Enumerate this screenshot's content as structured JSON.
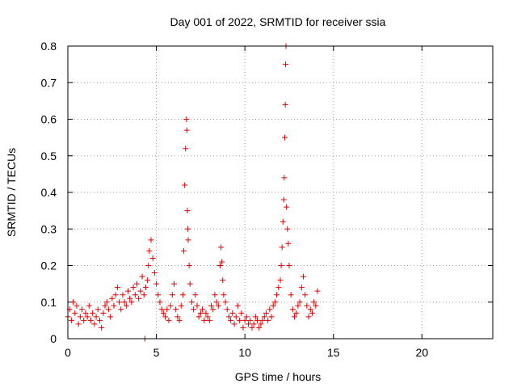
{
  "chart_data": {
    "type": "scatter",
    "title": "Day 001 of 2022, SRMTID for receiver ssia",
    "xlabel": "GPS time / hours",
    "ylabel": "SRMTID / TECUs",
    "xlim": [
      0,
      24
    ],
    "ylim": [
      0,
      0.8
    ],
    "x_ticks": [
      0,
      5,
      10,
      15,
      20
    ],
    "y_ticks": [
      0,
      0.1,
      0.2,
      0.3,
      0.4,
      0.5,
      0.6,
      0.7,
      0.8
    ],
    "x_tick_labels": [
      "0",
      "5",
      "10",
      "15",
      "20"
    ],
    "y_tick_labels": [
      "0",
      "0.1",
      "0.2",
      "0.3",
      "0.4",
      "0.5",
      "0.6",
      "0.7",
      "0.8"
    ],
    "grid": true,
    "marker": "+",
    "color": "#e00000",
    "series": [
      {
        "name": "SRMTID",
        "x": [
          0.0,
          0.1,
          0.2,
          0.3,
          0.4,
          0.5,
          0.6,
          0.7,
          0.8,
          0.9,
          1.0,
          1.1,
          1.2,
          1.3,
          1.4,
          1.5,
          1.6,
          1.7,
          1.8,
          1.9,
          2.0,
          2.1,
          2.2,
          2.3,
          2.4,
          2.5,
          2.6,
          2.7,
          2.8,
          2.9,
          3.0,
          3.1,
          3.2,
          3.3,
          3.4,
          3.5,
          3.6,
          3.7,
          3.8,
          3.9,
          4.0,
          4.1,
          4.2,
          4.3,
          4.35,
          4.4,
          4.5,
          4.55,
          4.6,
          4.7,
          4.8,
          4.9,
          5.0,
          5.1,
          5.2,
          5.3,
          5.4,
          5.5,
          5.6,
          5.7,
          5.8,
          5.9,
          6.0,
          6.1,
          6.2,
          6.3,
          6.4,
          6.5,
          6.55,
          6.6,
          6.65,
          6.7,
          6.72,
          6.75,
          6.78,
          6.8,
          6.85,
          6.9,
          7.0,
          7.1,
          7.2,
          7.3,
          7.4,
          7.5,
          7.6,
          7.7,
          7.8,
          7.9,
          8.0,
          8.1,
          8.2,
          8.3,
          8.4,
          8.5,
          8.6,
          8.65,
          8.7,
          8.75,
          8.8,
          8.9,
          9.0,
          9.1,
          9.2,
          9.3,
          9.4,
          9.5,
          9.6,
          9.7,
          9.8,
          9.9,
          10.0,
          10.1,
          10.2,
          10.3,
          10.4,
          10.5,
          10.6,
          10.7,
          10.8,
          10.9,
          11.0,
          11.1,
          11.2,
          11.3,
          11.4,
          11.5,
          11.6,
          11.7,
          11.8,
          11.9,
          12.0,
          12.05,
          12.1,
          12.15,
          12.2,
          12.22,
          12.25,
          12.28,
          12.3,
          12.32,
          12.35,
          12.4,
          12.45,
          12.5,
          12.6,
          12.7,
          12.8,
          12.9,
          13.0,
          13.1,
          13.2,
          13.3,
          13.4,
          13.5,
          13.6,
          13.7,
          13.8,
          13.9,
          14.0,
          14.1
        ],
        "y": [
          0.06,
          0.08,
          0.05,
          0.1,
          0.07,
          0.09,
          0.04,
          0.06,
          0.08,
          0.05,
          0.07,
          0.06,
          0.09,
          0.05,
          0.07,
          0.04,
          0.06,
          0.08,
          0.05,
          0.03,
          0.07,
          0.09,
          0.1,
          0.08,
          0.06,
          0.11,
          0.09,
          0.12,
          0.14,
          0.1,
          0.08,
          0.12,
          0.1,
          0.09,
          0.13,
          0.11,
          0.1,
          0.14,
          0.12,
          0.15,
          0.11,
          0.13,
          0.17,
          0.12,
          0.0,
          0.14,
          0.16,
          0.2,
          0.24,
          0.27,
          0.22,
          0.18,
          0.15,
          0.12,
          0.1,
          0.08,
          0.07,
          0.06,
          0.08,
          0.05,
          0.09,
          0.12,
          0.15,
          0.08,
          0.06,
          0.05,
          0.09,
          0.12,
          0.24,
          0.42,
          0.52,
          0.6,
          0.57,
          0.35,
          0.3,
          0.27,
          0.2,
          0.15,
          0.1,
          0.08,
          0.12,
          0.09,
          0.06,
          0.07,
          0.08,
          0.05,
          0.07,
          0.06,
          0.05,
          0.09,
          0.08,
          0.12,
          0.1,
          0.09,
          0.2,
          0.25,
          0.21,
          0.16,
          0.12,
          0.1,
          0.08,
          0.06,
          0.05,
          0.07,
          0.04,
          0.06,
          0.09,
          0.05,
          0.07,
          0.03,
          0.05,
          0.06,
          0.04,
          0.05,
          0.03,
          0.04,
          0.06,
          0.05,
          0.03,
          0.04,
          0.05,
          0.06,
          0.07,
          0.05,
          0.08,
          0.06,
          0.09,
          0.1,
          0.12,
          0.14,
          0.16,
          0.2,
          0.25,
          0.32,
          0.38,
          0.44,
          0.55,
          0.64,
          0.75,
          0.8,
          0.36,
          0.3,
          0.26,
          0.2,
          0.12,
          0.08,
          0.06,
          0.07,
          0.09,
          0.1,
          0.14,
          0.17,
          0.12,
          0.09,
          0.06,
          0.08,
          0.07,
          0.1,
          0.09,
          0.13
        ]
      }
    ]
  }
}
